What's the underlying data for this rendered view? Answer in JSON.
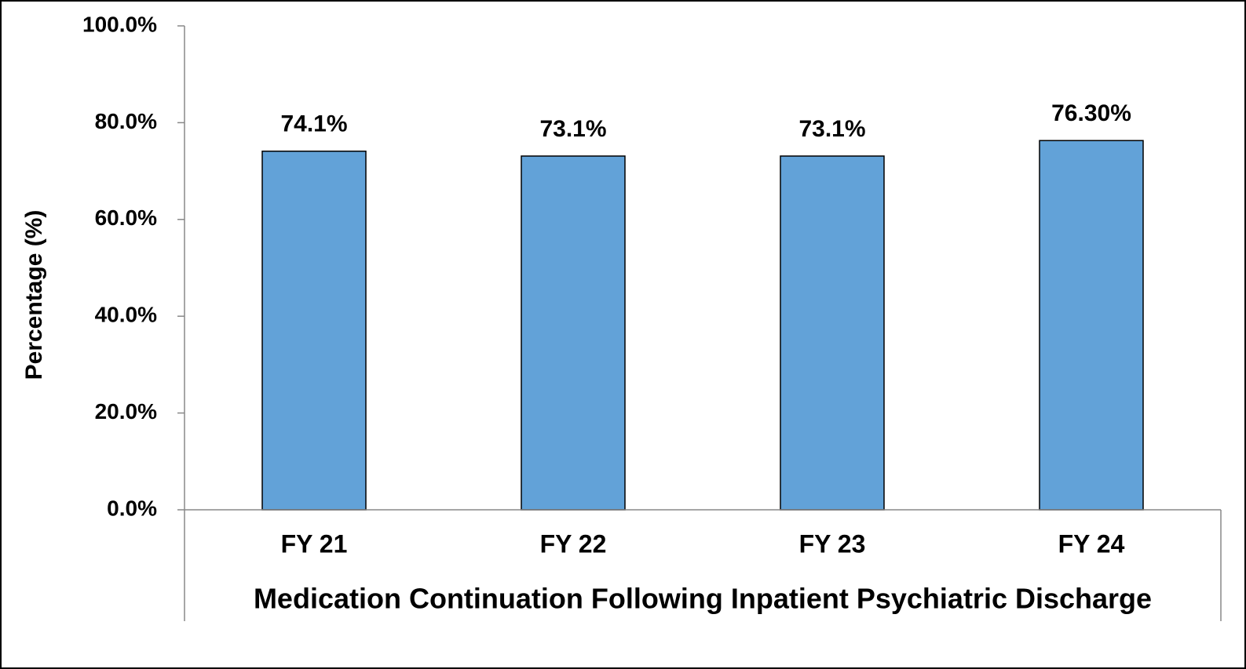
{
  "chart_data": {
    "type": "bar",
    "x_label": "Medication Continuation Following Inpatient Psychiatric Discharge",
    "y_label": "Percentage (%)",
    "categories": [
      "FY 21",
      "FY 22",
      "FY 23",
      "FY 24"
    ],
    "values": [
      74.1,
      73.1,
      73.1,
      76.3
    ],
    "value_labels": [
      "74.1%",
      "73.1%",
      "73.1%",
      "76.30%"
    ],
    "color": "#62a2d8",
    "ylim": [
      0,
      100
    ],
    "yticks": [
      {
        "value": 0,
        "label": "0.0%"
      },
      {
        "value": 20,
        "label": "20.0%"
      },
      {
        "value": 40,
        "label": "40.0%"
      },
      {
        "value": 60,
        "label": "60.0%"
      },
      {
        "value": 80,
        "label": "80.0%"
      },
      {
        "value": 100,
        "label": "100.0%"
      }
    ],
    "grid": false
  }
}
